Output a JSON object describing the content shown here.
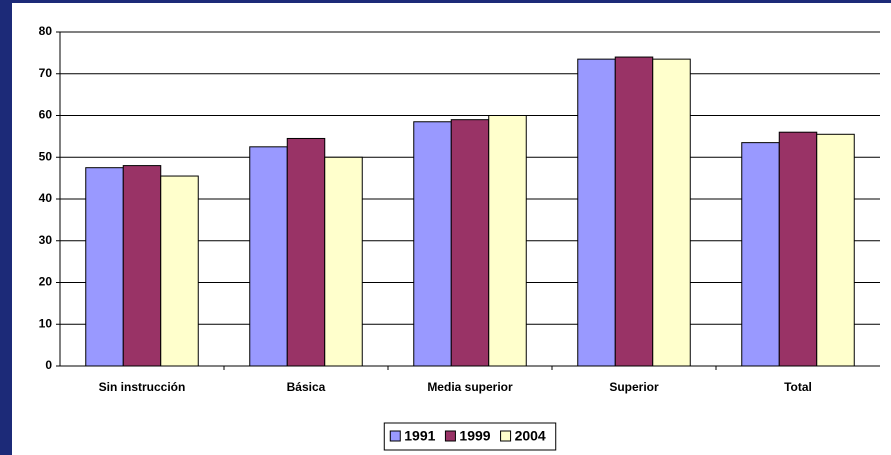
{
  "chart_data": {
    "type": "bar",
    "categories": [
      "Sin instrucción",
      "Básica",
      "Media superior",
      "Superior",
      "Total"
    ],
    "series": [
      {
        "name": "1991",
        "color": "#9999ff",
        "values": [
          47.5,
          52.5,
          58.5,
          73.5,
          53.5
        ]
      },
      {
        "name": "1999",
        "color": "#993366",
        "values": [
          48,
          54.5,
          59,
          74,
          56
        ]
      },
      {
        "name": "2004",
        "color": "#ffffcc",
        "values": [
          45.5,
          50,
          60,
          73.5,
          55.5
        ]
      }
    ],
    "ylim": [
      0,
      80
    ],
    "yticks": [
      0,
      10,
      20,
      30,
      40,
      50,
      60,
      70,
      80
    ],
    "grid": true,
    "legend": "bottom"
  }
}
